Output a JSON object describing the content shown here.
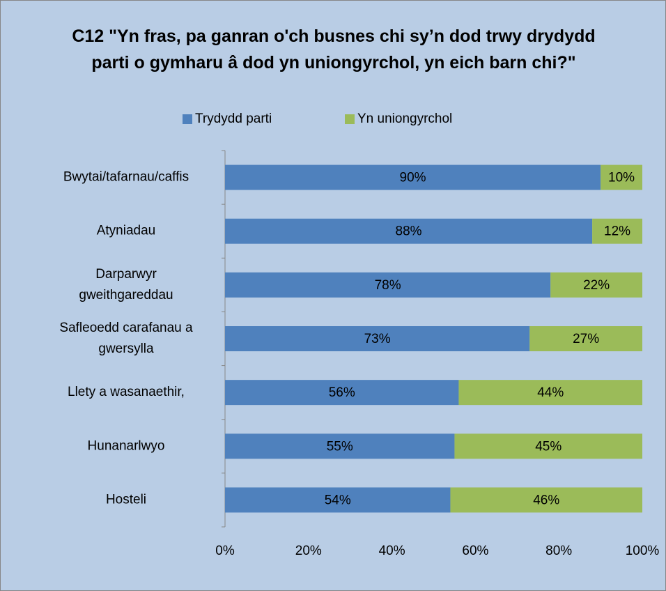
{
  "chart_data": {
    "type": "stacked_barh",
    "title": "C12 \"Yn fras, pa ganran o'ch busnes chi sy’n dod trwy drydydd parti o gymharu â dod yn uniongyrchol, yn eich barn chi?\"",
    "categories": [
      "Bwytai/tafarnau/caffis",
      "Atyniadau",
      "Darparwyr\ngweithgareddau",
      "Safleoedd carafanau a\ngwersylla",
      "Llety a wasanaethir,",
      "Hunanarlwyo",
      "Hosteli"
    ],
    "series": [
      {
        "name": "Trydydd parti",
        "color": "#4f81bd",
        "values": [
          90,
          88,
          78,
          73,
          56,
          55,
          54
        ],
        "value_labels": [
          "90%",
          "88%",
          "78%",
          "73%",
          "56%",
          "55%",
          "54%"
        ]
      },
      {
        "name": "Yn uniongyrchol",
        "color": "#9bbb59",
        "values": [
          10,
          12,
          22,
          27,
          44,
          45,
          46
        ],
        "value_labels": [
          "10%",
          "12%",
          "22%",
          "27%",
          "44%",
          "45%",
          "46%"
        ]
      }
    ],
    "xlim": [
      0,
      100
    ],
    "xticks": [
      {
        "value": 0,
        "label": "0%"
      },
      {
        "value": 20,
        "label": "20%"
      },
      {
        "value": 40,
        "label": "40%"
      },
      {
        "value": 60,
        "label": "60%"
      },
      {
        "value": 80,
        "label": "80%"
      },
      {
        "value": 100,
        "label": "100%"
      }
    ],
    "legend": "top"
  }
}
